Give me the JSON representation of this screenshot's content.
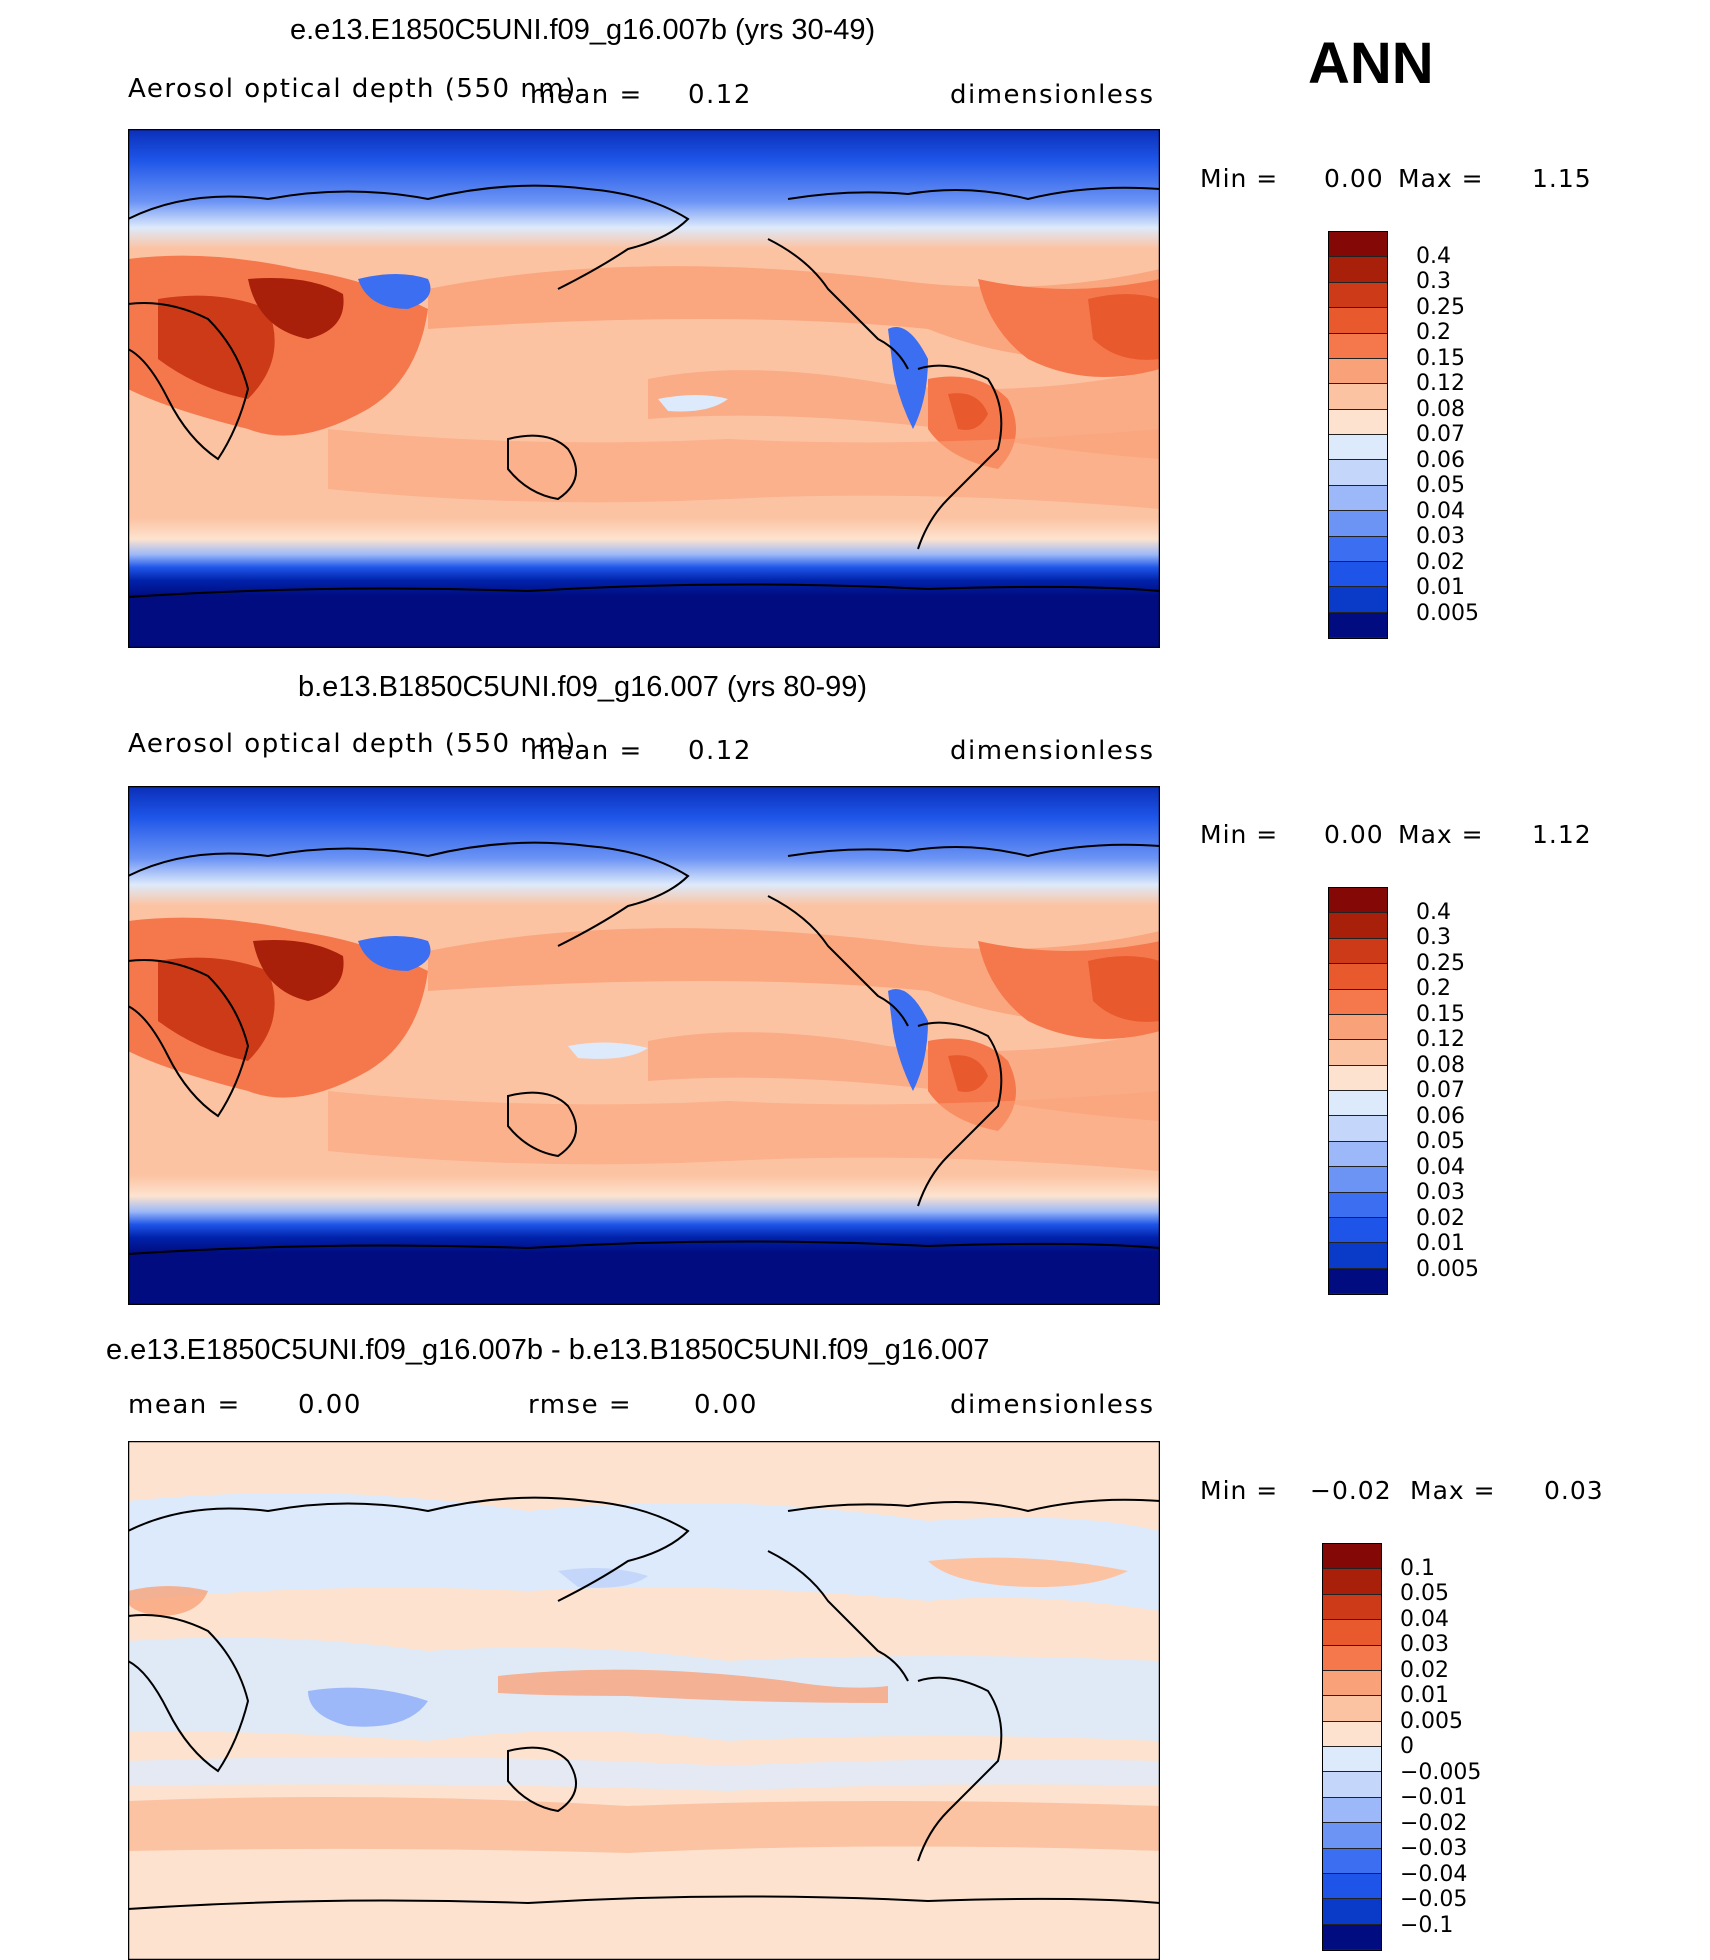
{
  "season": "ANN",
  "colors": {
    "levels_13": [
      "#000c80",
      "#0022aa",
      "#0a3ac8",
      "#1e55e8",
      "#3c6ef2",
      "#6c94f5",
      "#9cb8f8",
      "#c4d6fa",
      "#ddeafb",
      "#fde3cf",
      "#fcc3a3",
      "#f9a279",
      "#f5784c",
      "#e85a2e",
      "#cc3a18",
      "#a81f0a",
      "#840806"
    ]
  },
  "chart_data": [
    {
      "type": "contour-map",
      "title": "e.e13.E1850C5UNI.f09_g16.007b (yrs 30-49)",
      "variable": "Aerosol optical depth (550 nm)",
      "mean_label": "mean =",
      "mean": "0.12",
      "units": "dimensionless",
      "min_label": "Min =",
      "min": "0.00",
      "max_label": "Max =",
      "max": "1.15",
      "colorbar_levels": [
        "0.4",
        "0.3",
        "0.25",
        "0.2",
        "0.15",
        "0.12",
        "0.08",
        "0.07",
        "0.06",
        "0.05",
        "0.04",
        "0.03",
        "0.02",
        "0.01",
        "0.005"
      ]
    },
    {
      "type": "contour-map",
      "title": "b.e13.B1850C5UNI.f09_g16.007 (yrs 80-99)",
      "variable": "Aerosol optical depth (550 nm)",
      "mean_label": "mean =",
      "mean": "0.12",
      "units": "dimensionless",
      "min_label": "Min =",
      "min": "0.00",
      "max_label": "Max =",
      "max": "1.12",
      "colorbar_levels": [
        "0.4",
        "0.3",
        "0.25",
        "0.2",
        "0.15",
        "0.12",
        "0.08",
        "0.07",
        "0.06",
        "0.05",
        "0.04",
        "0.03",
        "0.02",
        "0.01",
        "0.005"
      ]
    },
    {
      "type": "contour-map",
      "title": "e.e13.E1850C5UNI.f09_g16.007b - b.e13.B1850C5UNI.f09_g16.007",
      "mean_label": "mean =",
      "mean": "0.00",
      "rmse_label": "rmse =",
      "rmse": "0.00",
      "units": "dimensionless",
      "min_label": "Min =",
      "min": "−0.02",
      "max_label": "Max =",
      "max": "0.03",
      "colorbar_levels": [
        "0.1",
        "0.05",
        "0.04",
        "0.03",
        "0.02",
        "0.01",
        "0.005",
        "0",
        "−0.005",
        "−0.01",
        "−0.02",
        "−0.03",
        "−0.04",
        "−0.05",
        "−0.1"
      ]
    }
  ]
}
